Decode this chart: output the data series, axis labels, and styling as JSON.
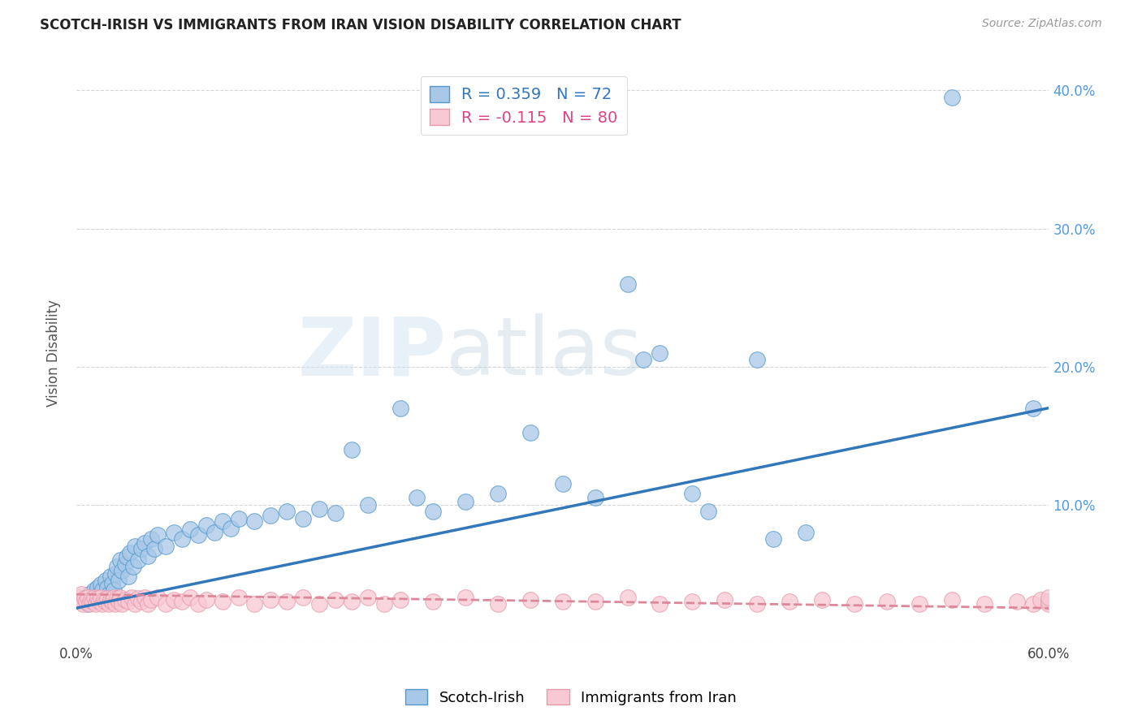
{
  "title": "SCOTCH-IRISH VS IMMIGRANTS FROM IRAN VISION DISABILITY CORRELATION CHART",
  "source": "Source: ZipAtlas.com",
  "ylabel": "Vision Disability",
  "xlim": [
    0.0,
    0.6
  ],
  "ylim": [
    0.0,
    0.42
  ],
  "scotch_irish_R": 0.359,
  "scotch_irish_N": 72,
  "iran_R": -0.115,
  "iran_N": 80,
  "blue_face_color": "#a8c8e8",
  "blue_edge_color": "#5599cc",
  "pink_face_color": "#f8c8d4",
  "pink_edge_color": "#e899aa",
  "blue_line_color": "#3377bb",
  "pink_line_color": "#dd8899",
  "blue_trend_start_y": 0.025,
  "blue_trend_end_y": 0.17,
  "pink_trend_start_y": 0.035,
  "pink_trend_end_y": 0.025,
  "watermark": "ZIPatlas",
  "background_color": "#ffffff",
  "grid_color": "#cccccc",
  "right_tick_color": "#5599dd",
  "scotch_irish_points": [
    [
      0.005,
      0.03
    ],
    [
      0.006,
      0.033
    ],
    [
      0.007,
      0.028
    ],
    [
      0.008,
      0.035
    ],
    [
      0.01,
      0.032
    ],
    [
      0.011,
      0.038
    ],
    [
      0.012,
      0.03
    ],
    [
      0.013,
      0.04
    ],
    [
      0.014,
      0.035
    ],
    [
      0.015,
      0.042
    ],
    [
      0.016,
      0.038
    ],
    [
      0.017,
      0.033
    ],
    [
      0.018,
      0.045
    ],
    [
      0.019,
      0.04
    ],
    [
      0.02,
      0.035
    ],
    [
      0.021,
      0.048
    ],
    [
      0.022,
      0.043
    ],
    [
      0.023,
      0.038
    ],
    [
      0.024,
      0.05
    ],
    [
      0.025,
      0.055
    ],
    [
      0.026,
      0.045
    ],
    [
      0.027,
      0.06
    ],
    [
      0.028,
      0.052
    ],
    [
      0.03,
      0.057
    ],
    [
      0.031,
      0.062
    ],
    [
      0.032,
      0.048
    ],
    [
      0.033,
      0.065
    ],
    [
      0.035,
      0.055
    ],
    [
      0.036,
      0.07
    ],
    [
      0.038,
      0.06
    ],
    [
      0.04,
      0.068
    ],
    [
      0.042,
      0.072
    ],
    [
      0.044,
      0.063
    ],
    [
      0.046,
      0.075
    ],
    [
      0.048,
      0.068
    ],
    [
      0.05,
      0.078
    ],
    [
      0.055,
      0.07
    ],
    [
      0.06,
      0.08
    ],
    [
      0.065,
      0.075
    ],
    [
      0.07,
      0.082
    ],
    [
      0.075,
      0.078
    ],
    [
      0.08,
      0.085
    ],
    [
      0.085,
      0.08
    ],
    [
      0.09,
      0.088
    ],
    [
      0.095,
      0.083
    ],
    [
      0.1,
      0.09
    ],
    [
      0.11,
      0.088
    ],
    [
      0.12,
      0.092
    ],
    [
      0.13,
      0.095
    ],
    [
      0.14,
      0.09
    ],
    [
      0.15,
      0.097
    ],
    [
      0.16,
      0.094
    ],
    [
      0.17,
      0.14
    ],
    [
      0.18,
      0.1
    ],
    [
      0.2,
      0.17
    ],
    [
      0.21,
      0.105
    ],
    [
      0.22,
      0.095
    ],
    [
      0.24,
      0.102
    ],
    [
      0.26,
      0.108
    ],
    [
      0.28,
      0.152
    ],
    [
      0.3,
      0.115
    ],
    [
      0.32,
      0.105
    ],
    [
      0.34,
      0.26
    ],
    [
      0.35,
      0.205
    ],
    [
      0.36,
      0.21
    ],
    [
      0.38,
      0.108
    ],
    [
      0.39,
      0.095
    ],
    [
      0.42,
      0.205
    ],
    [
      0.43,
      0.075
    ],
    [
      0.45,
      0.08
    ],
    [
      0.54,
      0.395
    ],
    [
      0.59,
      0.17
    ]
  ],
  "iran_points": [
    [
      0.001,
      0.033
    ],
    [
      0.002,
      0.03
    ],
    [
      0.003,
      0.035
    ],
    [
      0.004,
      0.028
    ],
    [
      0.005,
      0.032
    ],
    [
      0.006,
      0.03
    ],
    [
      0.007,
      0.033
    ],
    [
      0.008,
      0.028
    ],
    [
      0.009,
      0.031
    ],
    [
      0.01,
      0.03
    ],
    [
      0.011,
      0.033
    ],
    [
      0.012,
      0.028
    ],
    [
      0.013,
      0.032
    ],
    [
      0.014,
      0.03
    ],
    [
      0.015,
      0.033
    ],
    [
      0.016,
      0.028
    ],
    [
      0.017,
      0.031
    ],
    [
      0.018,
      0.03
    ],
    [
      0.019,
      0.032
    ],
    [
      0.02,
      0.028
    ],
    [
      0.021,
      0.031
    ],
    [
      0.022,
      0.03
    ],
    [
      0.023,
      0.033
    ],
    [
      0.024,
      0.028
    ],
    [
      0.025,
      0.032
    ],
    [
      0.026,
      0.03
    ],
    [
      0.027,
      0.033
    ],
    [
      0.028,
      0.028
    ],
    [
      0.03,
      0.031
    ],
    [
      0.032,
      0.03
    ],
    [
      0.034,
      0.033
    ],
    [
      0.036,
      0.028
    ],
    [
      0.038,
      0.032
    ],
    [
      0.04,
      0.03
    ],
    [
      0.042,
      0.033
    ],
    [
      0.044,
      0.028
    ],
    [
      0.046,
      0.031
    ],
    [
      0.05,
      0.033
    ],
    [
      0.055,
      0.028
    ],
    [
      0.06,
      0.031
    ],
    [
      0.065,
      0.03
    ],
    [
      0.07,
      0.033
    ],
    [
      0.075,
      0.028
    ],
    [
      0.08,
      0.031
    ],
    [
      0.09,
      0.03
    ],
    [
      0.1,
      0.033
    ],
    [
      0.11,
      0.028
    ],
    [
      0.12,
      0.031
    ],
    [
      0.13,
      0.03
    ],
    [
      0.14,
      0.033
    ],
    [
      0.15,
      0.028
    ],
    [
      0.16,
      0.031
    ],
    [
      0.17,
      0.03
    ],
    [
      0.18,
      0.033
    ],
    [
      0.19,
      0.028
    ],
    [
      0.2,
      0.031
    ],
    [
      0.22,
      0.03
    ],
    [
      0.24,
      0.033
    ],
    [
      0.26,
      0.028
    ],
    [
      0.28,
      0.031
    ],
    [
      0.3,
      0.03
    ],
    [
      0.32,
      0.03
    ],
    [
      0.34,
      0.033
    ],
    [
      0.36,
      0.028
    ],
    [
      0.38,
      0.03
    ],
    [
      0.4,
      0.031
    ],
    [
      0.42,
      0.028
    ],
    [
      0.44,
      0.03
    ],
    [
      0.46,
      0.031
    ],
    [
      0.48,
      0.028
    ],
    [
      0.5,
      0.03
    ],
    [
      0.52,
      0.028
    ],
    [
      0.54,
      0.031
    ],
    [
      0.56,
      0.028
    ],
    [
      0.58,
      0.03
    ],
    [
      0.59,
      0.028
    ],
    [
      0.595,
      0.031
    ],
    [
      0.6,
      0.028
    ],
    [
      0.6,
      0.03
    ],
    [
      0.6,
      0.033
    ]
  ]
}
